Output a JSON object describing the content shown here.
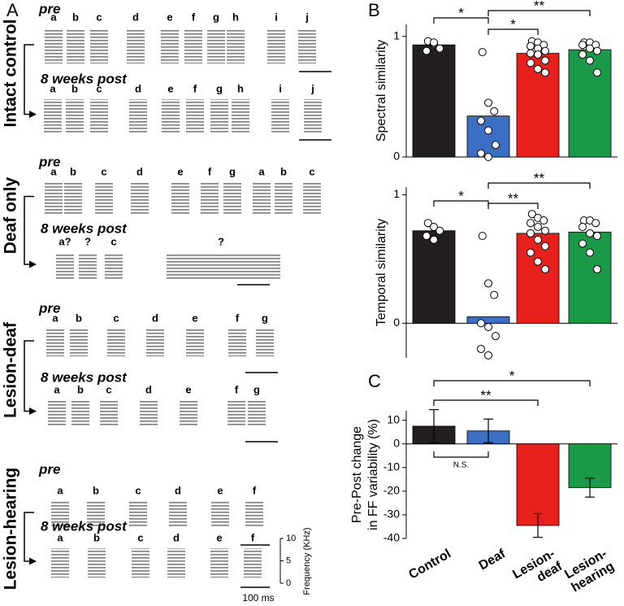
{
  "panel_labels": [
    "A",
    "B",
    "C"
  ],
  "panel_a": {
    "groups": [
      {
        "name": "Intact control",
        "color": "#000000",
        "pre_label": "pre",
        "post_label": "8 weeks post",
        "pre": [
          "a",
          "b",
          "c",
          "d",
          "e",
          "f",
          "g",
          "h",
          "i",
          "j"
        ],
        "post": [
          "a",
          "b",
          "c",
          "d",
          "e",
          "f",
          "g",
          "h",
          "i",
          "j"
        ]
      },
      {
        "name": "Deaf only",
        "color": "#2f6db5",
        "pre_label": "pre",
        "post_label": "8 weeks post",
        "pre": [
          "a",
          "b",
          "c",
          "d",
          "e",
          "f",
          "g",
          "a",
          "b",
          "c"
        ],
        "post": [
          "a?",
          "?",
          "c",
          "?"
        ]
      },
      {
        "name": "Lesion-deaf",
        "color": "#e8201c",
        "pre_label": "pre",
        "post_label": "8 weeks post",
        "pre": [
          "a",
          "b",
          "c",
          "d",
          "e",
          "f",
          "g"
        ],
        "post": [
          "a",
          "b",
          "c",
          "d",
          "e",
          "f",
          "g"
        ]
      },
      {
        "name": "Lesion-hearing",
        "color": "#1a9a48",
        "pre_label": "pre",
        "post_label": "8 weeks post",
        "pre": [
          "a",
          "b",
          "c",
          "d",
          "e",
          "f"
        ],
        "post": [
          "a",
          "b",
          "c",
          "d",
          "e",
          "f"
        ]
      }
    ],
    "time_scale": "100 ms",
    "freq_label": "Frequency (KHz)",
    "freq_ticks": [
      10,
      5,
      0
    ],
    "freq_lim": [
      0,
      10
    ]
  },
  "chart_data": [
    {
      "type": "bar",
      "ylabel": "Spectral similarity",
      "categories": [
        "Control",
        "Deaf",
        "Lesion-deaf",
        "Lesion-hearing"
      ],
      "colors": [
        "#231f20",
        "#3a6fc4",
        "#e8201c",
        "#1a9a48"
      ],
      "values": [
        0.93,
        0.34,
        0.86,
        0.89
      ],
      "points": [
        [
          0.96,
          0.94,
          0.9,
          0.88,
          0.95
        ],
        [
          0.87,
          0.45,
          0.38,
          0.3,
          0.22,
          0.1,
          0.03,
          0.0
        ],
        [
          0.96,
          0.95,
          0.93,
          0.92,
          0.9,
          0.88,
          0.86,
          0.85,
          0.8,
          0.78,
          0.73,
          0.7
        ],
        [
          0.95,
          0.95,
          0.93,
          0.93,
          0.9,
          0.88,
          0.85,
          0.8,
          0.7
        ]
      ],
      "ylim": [
        0,
        1.1
      ],
      "yticks": [
        0,
        1
      ],
      "significance": [
        "*",
        "*",
        "**"
      ]
    },
    {
      "type": "bar",
      "ylabel": "Temporal similarity",
      "categories": [
        "Control",
        "Deaf",
        "Lesion-deaf",
        "Lesion-hearing"
      ],
      "colors": [
        "#231f20",
        "#3a6fc4",
        "#e8201c",
        "#1a9a48"
      ],
      "values": [
        0.72,
        0.05,
        0.7,
        0.71
      ],
      "points": [
        [
          0.78,
          0.75,
          0.72,
          0.68,
          0.65
        ],
        [
          0.68,
          0.31,
          0.22,
          0.0,
          -0.03,
          -0.1,
          -0.2,
          -0.25
        ],
        [
          0.85,
          0.82,
          0.8,
          0.78,
          0.75,
          0.72,
          0.7,
          0.65,
          0.6,
          0.55,
          0.48,
          0.42
        ],
        [
          0.8,
          0.8,
          0.78,
          0.75,
          0.7,
          0.68,
          0.62,
          0.55,
          0.42
        ]
      ],
      "ylim": [
        -0.27,
        1.06
      ],
      "yticks": [
        0,
        1
      ],
      "significance": [
        "*",
        "**",
        "**"
      ]
    },
    {
      "type": "bar",
      "ylabel_lines": [
        "Pre-Post change",
        "in FF variability (%)"
      ],
      "categories": [
        "Control",
        "Deaf",
        "Lesion-deaf",
        "Lesion-hearing"
      ],
      "colors": [
        "#231f20",
        "#3a6fc4",
        "#e8201c",
        "#1a9a48"
      ],
      "values": [
        7.5,
        5.5,
        -34.5,
        -18.5
      ],
      "errors": [
        7,
        5,
        5,
        4
      ],
      "ylim": [
        -40,
        14
      ],
      "yticks": [
        -40,
        -30,
        -20,
        -10,
        0,
        10
      ],
      "significance": [
        "**",
        "*",
        "N.S."
      ]
    }
  ]
}
